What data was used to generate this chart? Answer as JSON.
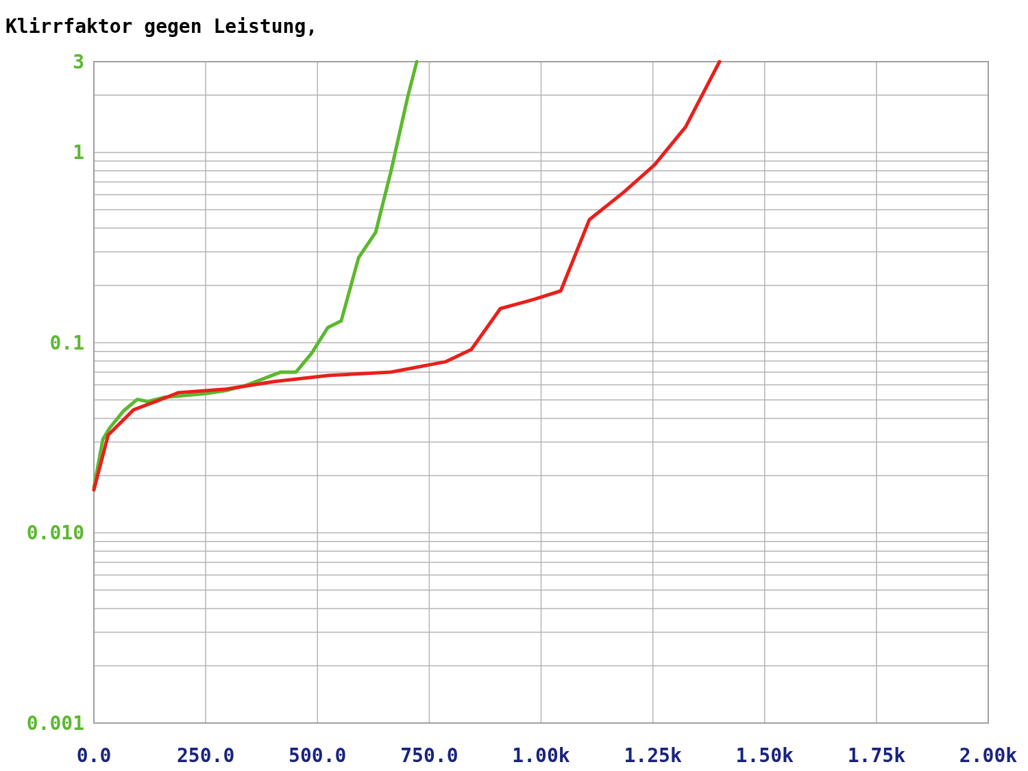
{
  "chart_data": {
    "type": "line",
    "title": "Klirrfaktor gegen Leistung,",
    "log": "y",
    "grid": true,
    "marker": "none",
    "line_style": "solid",
    "xlim": [
      0,
      2000
    ],
    "xticks": [
      {
        "value": 0,
        "label": "0.0"
      },
      {
        "value": 250,
        "label": "250.0"
      },
      {
        "value": 500,
        "label": "500.0"
      },
      {
        "value": 750,
        "label": "750.0"
      },
      {
        "value": 1000,
        "label": "1.00k"
      },
      {
        "value": 1250,
        "label": "1.25k"
      },
      {
        "value": 1500,
        "label": "1.50k"
      },
      {
        "value": 1750,
        "label": "1.75k"
      },
      {
        "value": 2000,
        "label": "2.00k"
      }
    ],
    "ylim": [
      0.001,
      3
    ],
    "yticks": [
      {
        "value": 0.001,
        "label": "0.001"
      },
      {
        "value": 0.002,
        "label": null
      },
      {
        "value": 0.003,
        "label": null
      },
      {
        "value": 0.004,
        "label": null
      },
      {
        "value": 0.005,
        "label": null
      },
      {
        "value": 0.006,
        "label": null
      },
      {
        "value": 0.007,
        "label": null
      },
      {
        "value": 0.008,
        "label": null
      },
      {
        "value": 0.009,
        "label": null
      },
      {
        "value": 0.01,
        "label": "0.010"
      },
      {
        "value": 0.02,
        "label": null
      },
      {
        "value": 0.03,
        "label": null
      },
      {
        "value": 0.04,
        "label": null
      },
      {
        "value": 0.05,
        "label": null
      },
      {
        "value": 0.06,
        "label": null
      },
      {
        "value": 0.07,
        "label": null
      },
      {
        "value": 0.08,
        "label": null
      },
      {
        "value": 0.09,
        "label": null
      },
      0.1,
      {
        "value": 0.2,
        "label": null
      },
      {
        "value": 0.3,
        "label": null
      },
      {
        "value": 0.4,
        "label": null
      },
      {
        "value": 0.5,
        "label": null
      },
      {
        "value": 0.6,
        "label": null
      },
      {
        "value": 0.7,
        "label": null
      },
      {
        "value": 0.8,
        "label": null
      },
      {
        "value": 0.9,
        "label": null
      },
      1,
      {
        "value": 2,
        "label": null
      },
      3
    ],
    "series": [
      {
        "color": "#5cb82e",
        "x": [
          0,
          20,
          35,
          66,
          97,
          120,
          158,
          250,
          296,
          342,
          418,
          452,
          487,
          523,
          553,
          592,
          630,
          664,
          702,
          722
        ],
        "values": [
          0.0173,
          0.031,
          0.0355,
          0.0437,
          0.0503,
          0.049,
          0.0516,
          0.054,
          0.056,
          0.0598,
          0.07,
          0.07,
          0.088,
          0.12,
          0.13,
          0.28,
          0.38,
          0.79,
          1.97,
          3
        ]
      },
      {
        "color": "#e8201c",
        "x": [
          0,
          32,
          89,
          143,
          189,
          296,
          403,
          526,
          664,
          786,
          844,
          909,
          985,
          1044,
          1108,
          1185,
          1254,
          1323,
          1399
        ],
        "values": [
          0.0168,
          0.0327,
          0.0444,
          0.0495,
          0.0546,
          0.057,
          0.0624,
          0.0672,
          0.07,
          0.0793,
          0.092,
          0.151,
          0.169,
          0.187,
          0.443,
          0.618,
          0.861,
          1.36,
          3
        ]
      }
    ]
  }
}
